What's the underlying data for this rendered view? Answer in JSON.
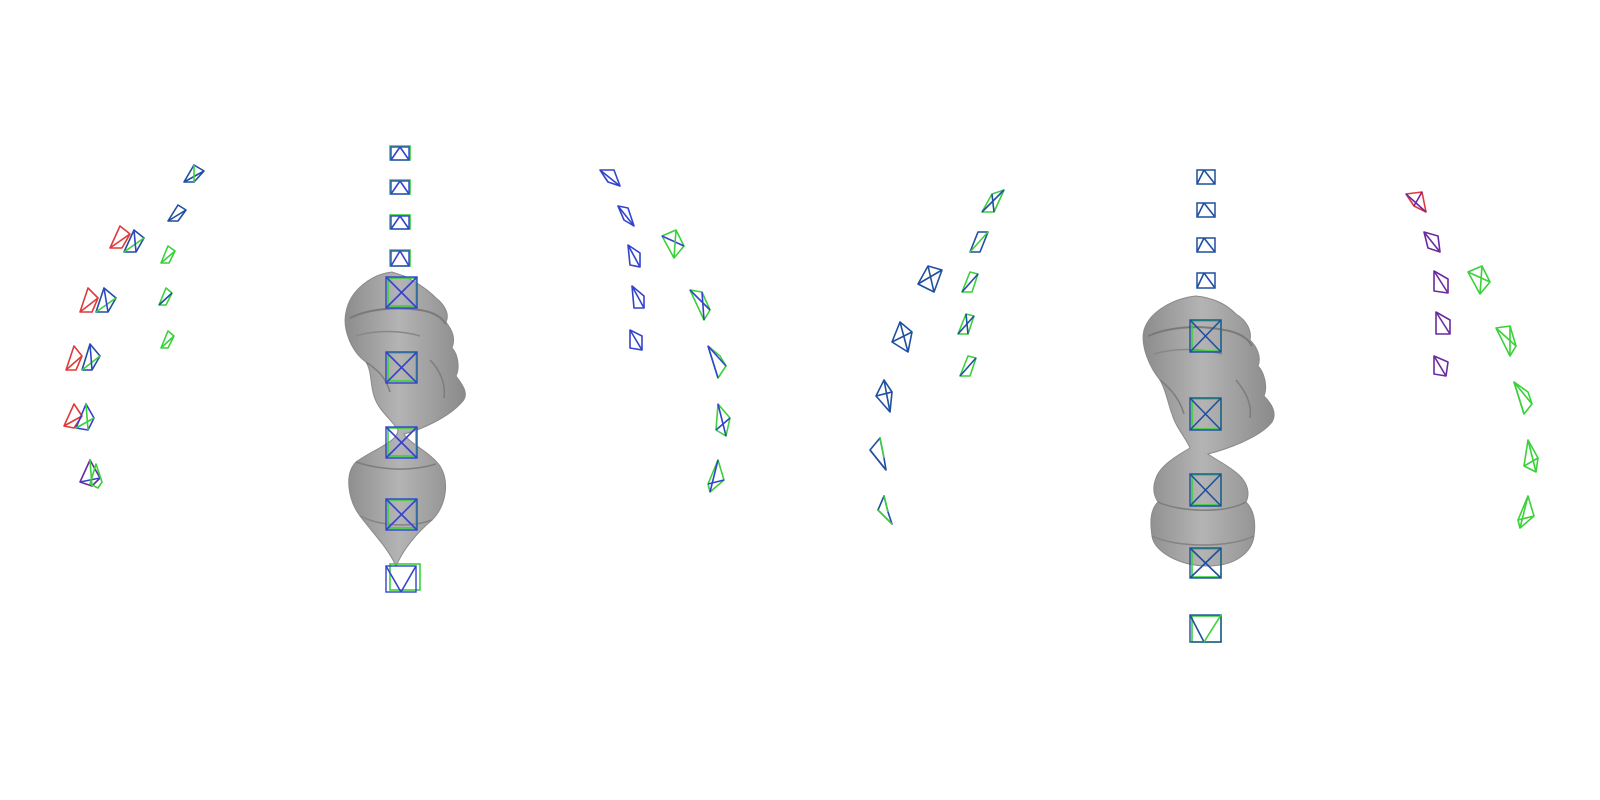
{
  "figure": {
    "description_visible_text": "",
    "colors": {
      "gt": "#3ad13a",
      "pred_blue": "#3344cc",
      "pred_navy": "#1f4fa0",
      "pred_red": "#e03a3a",
      "pred_purple": "#6a2aa0",
      "mesh": "#9e9e9e",
      "mesh_dark": "#7a7a7a"
    }
  },
  "panels": [
    {
      "id": "panel-1",
      "content": "camera-trajectory",
      "colors": [
        "red",
        "blue",
        "green",
        "purple"
      ]
    },
    {
      "id": "panel-2",
      "content": "bust-with-cameras",
      "colors": [
        "blue",
        "green"
      ]
    },
    {
      "id": "panel-3",
      "content": "camera-trajectory",
      "colors": [
        "blue",
        "green"
      ]
    },
    {
      "id": "panel-4",
      "content": "camera-trajectory",
      "colors": [
        "navy",
        "green"
      ]
    },
    {
      "id": "panel-5",
      "content": "bust-with-cameras",
      "colors": [
        "navy",
        "green"
      ]
    },
    {
      "id": "panel-6",
      "content": "camera-trajectory",
      "colors": [
        "purple",
        "red",
        "green"
      ]
    }
  ]
}
